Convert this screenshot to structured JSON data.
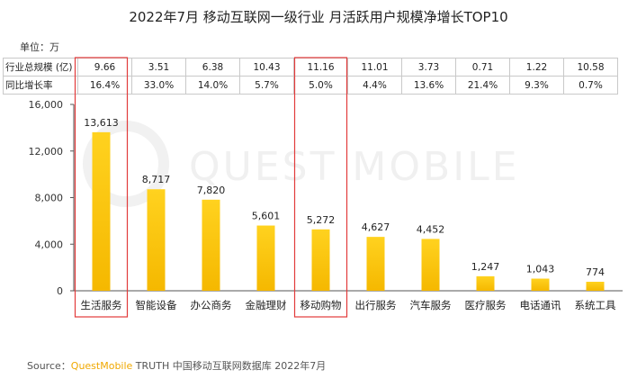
{
  "title": "2022年7月 移动互联网一级行业 月活跃用户规模净增长TOP10",
  "unit_label": "单位：万",
  "table": {
    "rows": [
      {
        "label": "行业总规模 (亿)",
        "values": [
          "9.66",
          "3.51",
          "6.38",
          "10.43",
          "11.16",
          "11.01",
          "3.73",
          "0.71",
          "1.22",
          "10.58"
        ]
      },
      {
        "label": "同比增长率",
        "values": [
          "16.4%",
          "33.0%",
          "14.0%",
          "5.7%",
          "5.0%",
          "4.4%",
          "13.6%",
          "21.4%",
          "9.3%",
          "0.7%"
        ]
      }
    ]
  },
  "watermark": "QUEST MOBILE",
  "chart_data": {
    "type": "bar",
    "title": "2022年7月 移动互联网一级行业 月活跃用户规模净增长TOP10",
    "xlabel": "",
    "ylabel": "单位：万",
    "categories": [
      "生活服务",
      "智能设备",
      "办公商务",
      "金融理财",
      "移动购物",
      "出行服务",
      "汽车服务",
      "医疗服务",
      "电话通讯",
      "系统工具"
    ],
    "values": [
      13613,
      8717,
      7820,
      5601,
      5272,
      4627,
      4452,
      1247,
      1043,
      774
    ],
    "value_labels": [
      "13,613",
      "8,717",
      "7,820",
      "5,601",
      "5,272",
      "4,627",
      "4,452",
      "1,247",
      "1,043",
      "774"
    ],
    "ylim": [
      0,
      16000
    ],
    "yticks": [
      0,
      4000,
      8000,
      12000,
      16000
    ],
    "ytick_labels": [
      "0",
      "4,000",
      "8,000",
      "12,000",
      "16,000"
    ],
    "highlighted": [
      "生活服务",
      "移动购物"
    ],
    "colors": {
      "bar_top": "#ffd21f",
      "bar_bottom": "#f5b800",
      "highlight": "#e23b3b",
      "axis": "#555555"
    }
  },
  "source": {
    "prefix": "Source：",
    "brand": "QuestMobile",
    "rest": " TRUTH 中国移动互联网数据库 2022年7月"
  }
}
